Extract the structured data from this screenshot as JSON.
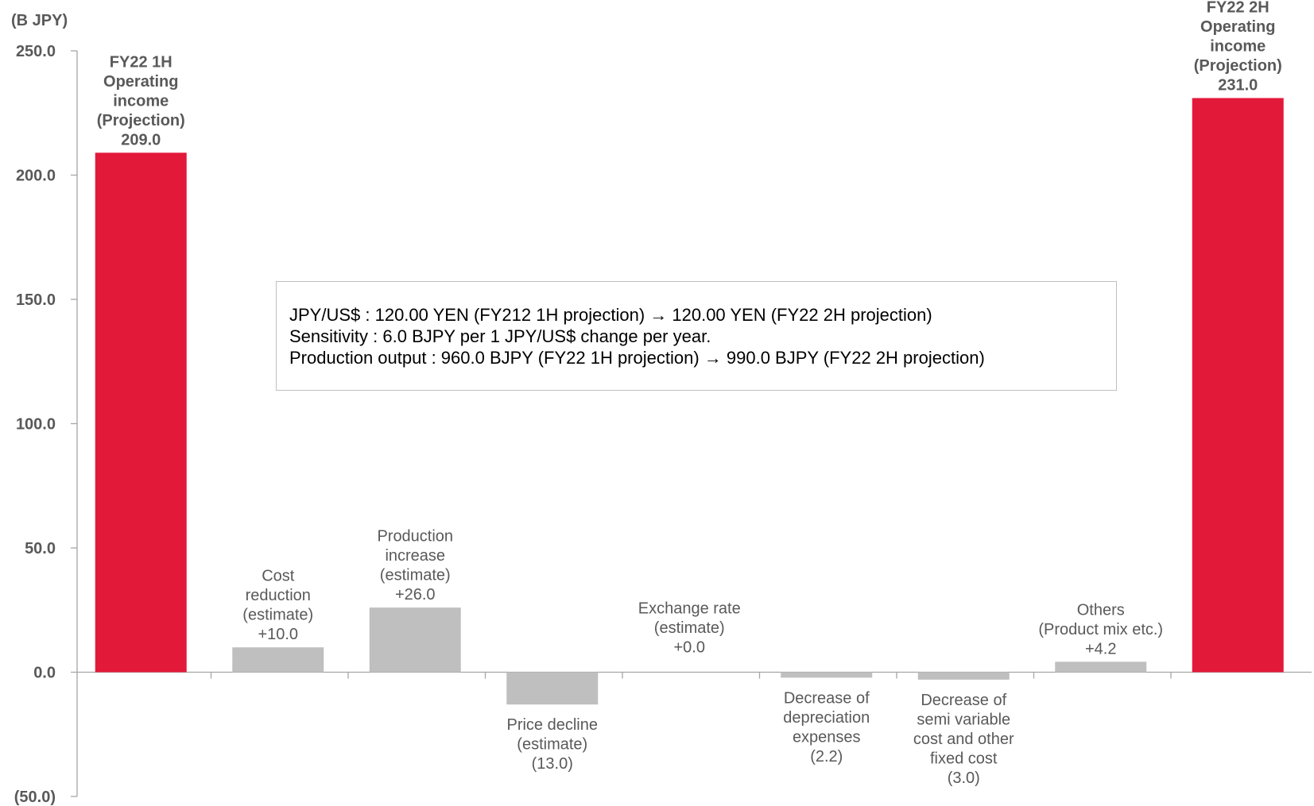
{
  "colors": {
    "total_bar": "#e3193a",
    "delta_bar": "#bfbfbf",
    "axis": "#a6a6a6",
    "text": "#595959"
  },
  "notes": {
    "lines": [
      "JPY/US$ : 120.00 YEN (FY212 1H projection) → 120.00 YEN (FY22 2H projection)",
      "Sensitivity : 6.0 BJPY per 1 JPY/US$ change per year.",
      "Production output : 960.0 BJPY (FY22 1H projection) → 990.0 BJPY (FY22 2H projection)"
    ]
  },
  "chart_data": {
    "type": "bar",
    "subtype": "waterfall",
    "unit_label": "(B JPY)",
    "ylim": [
      -50,
      250
    ],
    "yticks": [
      250,
      200,
      150,
      100,
      50,
      0,
      -50
    ],
    "ytick_labels": [
      "250.0",
      "200.0",
      "150.0",
      "100.0",
      "50.0",
      "0.0",
      "(50.0)"
    ],
    "grid": false,
    "bars": [
      {
        "kind": "total",
        "label": [
          "FY22 1H",
          "Operating",
          "income",
          "(Projection)"
        ],
        "value": 209.0,
        "value_label": "209.0"
      },
      {
        "kind": "delta",
        "label": [
          "Cost",
          "reduction",
          "(estimate)"
        ],
        "value": 10.0,
        "value_label": "+10.0"
      },
      {
        "kind": "delta",
        "label": [
          "Production",
          "increase",
          "(estimate)"
        ],
        "value": 26.0,
        "value_label": "+26.0"
      },
      {
        "kind": "delta",
        "label": [
          "Price decline",
          "(estimate)"
        ],
        "value": -13.0,
        "value_label": "(13.0)"
      },
      {
        "kind": "delta",
        "label": [
          "Exchange rate",
          "(estimate)"
        ],
        "value": 0.0,
        "value_label": "+0.0"
      },
      {
        "kind": "delta",
        "label": [
          "Decrease of",
          "depreciation",
          "expenses"
        ],
        "value": -2.2,
        "value_label": "(2.2)"
      },
      {
        "kind": "delta",
        "label": [
          "Decrease of",
          "semi variable",
          "cost and other",
          "fixed cost"
        ],
        "value": -3.0,
        "value_label": "(3.0)"
      },
      {
        "kind": "delta",
        "label": [
          "Others",
          "(Product mix etc.)"
        ],
        "value": 4.2,
        "value_label": "+4.2"
      },
      {
        "kind": "total",
        "label": [
          "FY22 2H",
          "Operating",
          "income",
          "(Projection)"
        ],
        "value": 231.0,
        "value_label": "231.0"
      }
    ]
  }
}
